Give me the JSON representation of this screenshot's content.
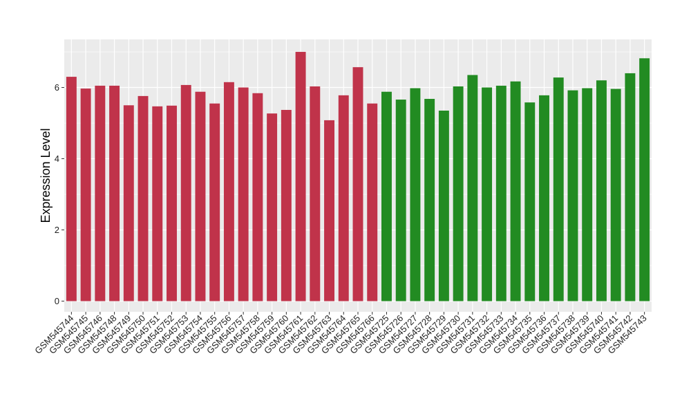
{
  "chart_data": {
    "type": "bar",
    "title": "",
    "xlabel": "",
    "ylabel": "Expression Level",
    "ylim": [
      -0.3,
      7.35
    ],
    "yticks": [
      0,
      2,
      4,
      6
    ],
    "grid": true,
    "legend": "none",
    "colors": {
      "group_1": "#c0334a",
      "group_2": "#228b22",
      "panel_bg": "#ebebeb",
      "grid": "#ffffff"
    },
    "categories": [
      "GSM545744",
      "GSM545745",
      "GSM545746",
      "GSM545748",
      "GSM545749",
      "GSM545750",
      "GSM545751",
      "GSM545752",
      "GSM545753",
      "GSM545754",
      "GSM545755",
      "GSM545756",
      "GSM545757",
      "GSM545758",
      "GSM545759",
      "GSM545760",
      "GSM545761",
      "GSM545762",
      "GSM545763",
      "GSM545764",
      "GSM545765",
      "GSM545766",
      "GSM545725",
      "GSM545726",
      "GSM545727",
      "GSM545728",
      "GSM545729",
      "GSM545730",
      "GSM545731",
      "GSM545732",
      "GSM545733",
      "GSM545734",
      "GSM545735",
      "GSM545736",
      "GSM545737",
      "GSM545738",
      "GSM545739",
      "GSM545740",
      "GSM545741",
      "GSM545742",
      "GSM545743"
    ],
    "values": [
      6.3,
      5.97,
      6.05,
      6.05,
      5.5,
      5.76,
      5.47,
      5.49,
      6.07,
      5.88,
      5.55,
      6.15,
      6.0,
      5.84,
      5.27,
      5.37,
      7.0,
      6.03,
      5.08,
      5.78,
      6.57,
      5.55,
      5.88,
      5.66,
      5.98,
      5.68,
      5.35,
      6.03,
      6.35,
      6.0,
      6.05,
      6.17,
      5.58,
      5.78,
      6.28,
      5.92,
      5.98,
      6.2,
      5.96,
      6.4,
      6.82
    ],
    "groups": [
      1,
      1,
      1,
      1,
      1,
      1,
      1,
      1,
      1,
      1,
      1,
      1,
      1,
      1,
      1,
      1,
      1,
      1,
      1,
      1,
      1,
      1,
      2,
      2,
      2,
      2,
      2,
      2,
      2,
      2,
      2,
      2,
      2,
      2,
      2,
      2,
      2,
      2,
      2,
      2,
      2
    ]
  }
}
